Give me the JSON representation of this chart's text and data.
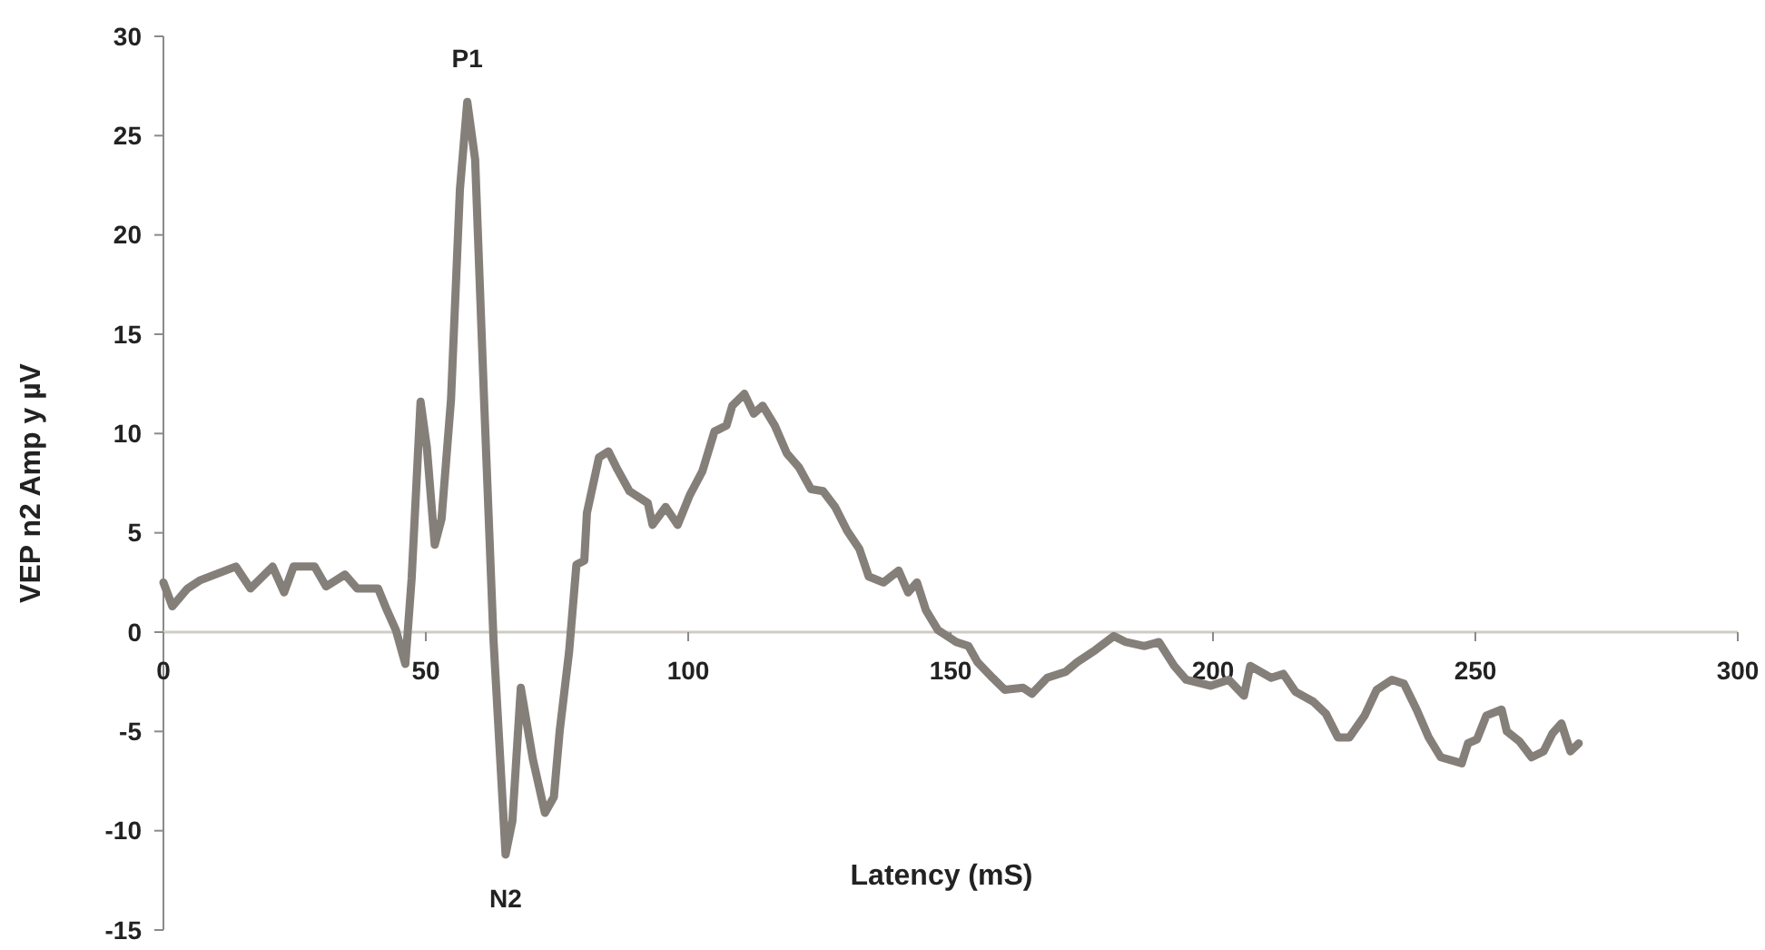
{
  "chart_data": {
    "type": "line",
    "xlabel": "Latency (mS)",
    "ylabel": "VEP n2 Amp y µV",
    "xlim": [
      0,
      300
    ],
    "xticks": [
      0,
      50,
      100,
      150,
      200,
      250,
      300
    ],
    "ylim": [
      -15,
      30
    ],
    "yticks": [
      -15,
      -10,
      -5,
      0,
      5,
      10,
      15,
      20,
      25,
      30
    ],
    "grid": false,
    "marker": "none",
    "line_style": "solid",
    "annotations": [
      {
        "text": "P1",
        "x": 57.9,
        "y": 26.7
      },
      {
        "text": "N2",
        "x": 65.2,
        "y": -11.2
      }
    ],
    "series": [
      {
        "color": "#857f7a",
        "x": [
          0,
          1.7,
          4.6,
          6.9,
          13.8,
          16.6,
          20.8,
          23,
          24.8,
          28.8,
          31,
          34.6,
          36.9,
          40.9,
          42.6,
          44.3,
          46.1,
          47.3,
          49,
          50.2,
          51.7,
          53,
          54.8,
          56.5,
          57.9,
          59.4,
          61.1,
          62.9,
          65.2,
          66.5,
          68.1,
          70.4,
          72.7,
          74.4,
          75.5,
          77.3,
          78.7,
          80.2,
          80.7,
          83,
          84.8,
          86.5,
          88.8,
          92.3,
          93.2,
          95.7,
          98,
          100.3,
          102.7,
          105,
          107.3,
          108.4,
          110.7,
          112.5,
          114.2,
          116.5,
          118.8,
          121.1,
          123.4,
          125.7,
          128,
          130.3,
          132.6,
          134.4,
          137.2,
          140.1,
          141.9,
          143.6,
          145.3,
          147.6,
          151.1,
          153.4,
          155.1,
          158,
          160.3,
          163.8,
          165.5,
          168.4,
          171.9,
          174.2,
          177.6,
          181.1,
          183.4,
          186.9,
          189.7,
          192.6,
          194.9,
          199.6,
          203,
          205.9,
          207.1,
          211.1,
          213.4,
          215.7,
          219.1,
          221.5,
          223.8,
          226,
          228.9,
          231.2,
          234.1,
          236.4,
          238.8,
          241.1,
          243.4,
          247.4,
          248.6,
          250.3,
          252.1,
          255,
          256,
          258.4,
          260.7,
          263,
          264.7,
          266.4,
          268.1,
          269.7
        ],
        "values": [
          2.5,
          1.3,
          2.2,
          2.6,
          3.3,
          2.2,
          3.3,
          2.0,
          3.3,
          3.3,
          2.3,
          2.9,
          2.2,
          2.2,
          1.1,
          0.1,
          -1.6,
          2.7,
          11.6,
          9.3,
          4.4,
          5.7,
          11.7,
          22.3,
          26.7,
          23.8,
          11.7,
          -0.4,
          -11.2,
          -9.5,
          -2.8,
          -6.4,
          -9.1,
          -8.3,
          -5.0,
          -1.0,
          3.4,
          3.6,
          6.0,
          8.8,
          9.1,
          8.2,
          7.1,
          6.5,
          5.4,
          6.3,
          5.4,
          6.9,
          8.1,
          10.1,
          10.4,
          11.4,
          12.0,
          11.0,
          11.4,
          10.4,
          9.0,
          8.3,
          7.2,
          7.1,
          6.3,
          5.1,
          4.2,
          2.8,
          2.5,
          3.1,
          2.0,
          2.5,
          1.1,
          0.1,
          -0.5,
          -0.7,
          -1.5,
          -2.3,
          -2.9,
          -2.8,
          -3.1,
          -2.3,
          -2.0,
          -1.5,
          -0.9,
          -0.2,
          -0.5,
          -0.7,
          -0.5,
          -1.7,
          -2.4,
          -2.7,
          -2.4,
          -3.2,
          -1.7,
          -2.3,
          -2.1,
          -3.0,
          -3.5,
          -4.1,
          -5.3,
          -5.3,
          -4.2,
          -2.9,
          -2.4,
          -2.6,
          -3.9,
          -5.3,
          -6.3,
          -6.6,
          -5.6,
          -5.4,
          -4.2,
          -3.9,
          -5.0,
          -5.5,
          -6.3,
          -6.0,
          -5.1,
          -4.6,
          -6.0,
          -5.6
        ]
      }
    ]
  }
}
